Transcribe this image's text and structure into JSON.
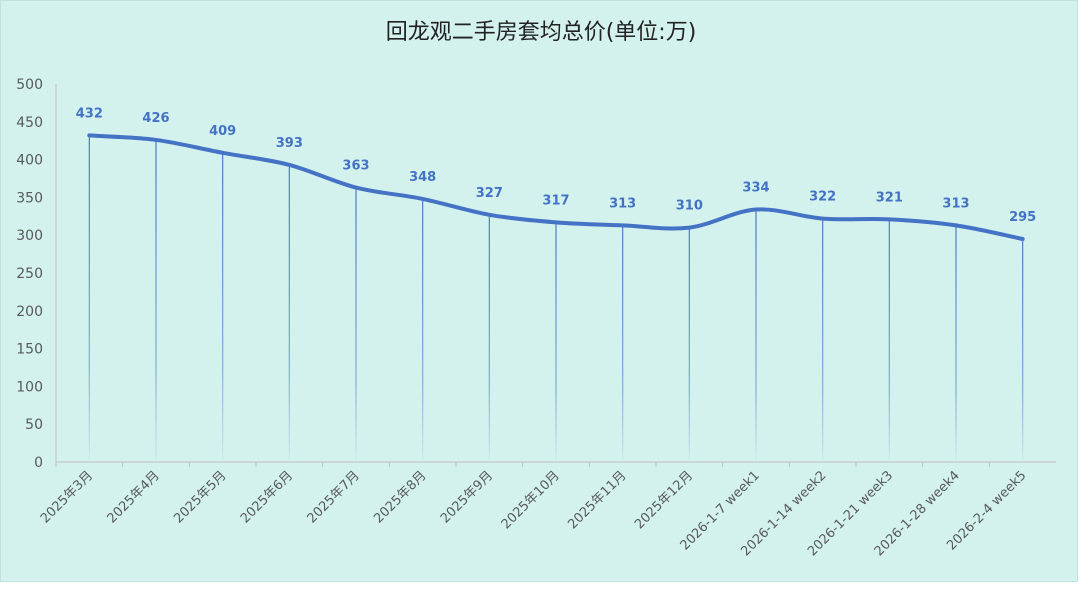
{
  "chart_data": {
    "type": "line",
    "title": "回龙观二手房套均总价(单位:万)",
    "xlabel": "",
    "ylabel": "",
    "categories": [
      "2025年3月",
      "2025年4月",
      "2025年5月",
      "2025年6月",
      "2025年7月",
      "2025年8月",
      "2025年9月",
      "2025年10月",
      "2025年11月",
      "2025年12月",
      "2026-1-7 week1",
      "2026-1-14 week2",
      "2026-1-21 week3",
      "2026-1-28 week4",
      "2026-2-4 week5"
    ],
    "values": [
      432,
      426,
      409,
      393,
      363,
      348,
      327,
      317,
      313,
      310,
      334,
      322,
      321,
      313,
      295
    ],
    "ylim": [
      0,
      500
    ],
    "yticks": [
      0,
      50,
      100,
      150,
      200,
      250,
      300,
      350,
      400,
      450,
      500
    ],
    "data_labels": true,
    "drop_lines": true,
    "smooth": true,
    "grid": false,
    "legend": "none",
    "colors": {
      "line": "#4472c4",
      "background": "#d3f2ee"
    }
  }
}
